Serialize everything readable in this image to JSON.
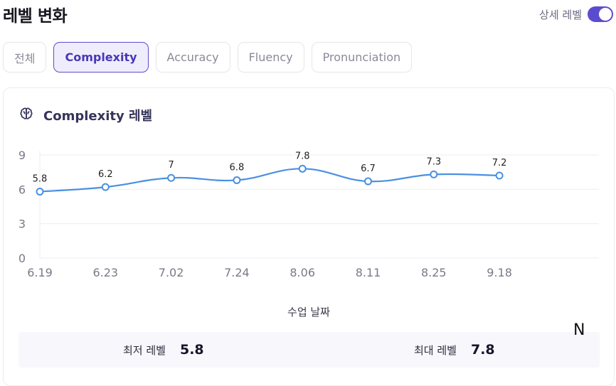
{
  "header": {
    "title": "레벨 변화",
    "detail_label": "상세 레벨",
    "detail_on": true
  },
  "tabs": [
    {
      "label": "전체",
      "active": false
    },
    {
      "label": "Complexity",
      "active": true
    },
    {
      "label": "Accuracy",
      "active": false
    },
    {
      "label": "Fluency",
      "active": false
    },
    {
      "label": "Pronunciation",
      "active": false
    }
  ],
  "card": {
    "icon": "brain-icon",
    "title": "Complexity 레벨"
  },
  "chart_data": {
    "type": "line",
    "categories": [
      "6.19",
      "6.23",
      "7.02",
      "7.24",
      "8.06",
      "8.11",
      "8.25",
      "9.18"
    ],
    "values": [
      5.8,
      6.2,
      7,
      6.8,
      7.8,
      6.7,
      7.3,
      7.2
    ],
    "data_labels": [
      "5.8",
      "6.2",
      "7",
      "6.8",
      "7.8",
      "6.7",
      "7.3",
      "7.2"
    ],
    "yticks": [
      "0",
      "3",
      "6",
      "9"
    ],
    "ylim": [
      0,
      9
    ],
    "xlabel": "수업 날짜",
    "ylabel": "",
    "grid": true,
    "curve": "smooth",
    "color": "#4a90e2"
  },
  "stats": {
    "min_label": "최저 레벨",
    "min_value": "5.8",
    "max_label": "최대 레벨",
    "max_value": "7.8"
  },
  "corner_char": "N",
  "colors": {
    "accent": "#5b4ccf",
    "line": "#4a90e2"
  }
}
